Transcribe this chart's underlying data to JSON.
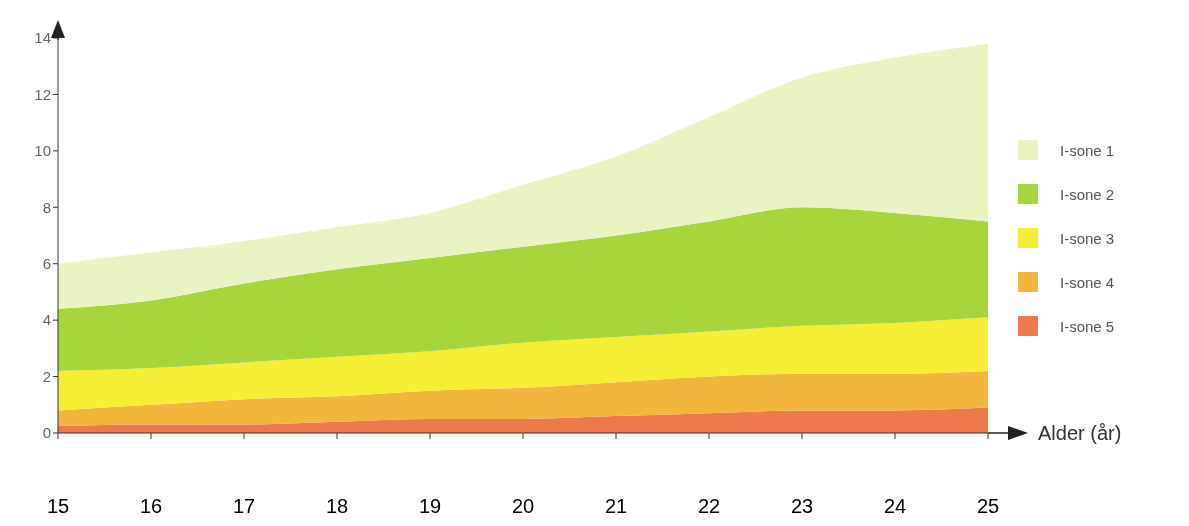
{
  "chart_data": {
    "type": "area",
    "stacked": true,
    "xlabel": "Alder (år)",
    "x": [
      15,
      16,
      17,
      18,
      19,
      20,
      21,
      22,
      23,
      24,
      25
    ],
    "xlim": [
      15,
      25
    ],
    "xticks": [
      15,
      16,
      17,
      18,
      19,
      20,
      21,
      22,
      23,
      24,
      25
    ],
    "ylim": [
      0,
      14
    ],
    "yticks": [
      0,
      2,
      4,
      6,
      8,
      10,
      12,
      14
    ],
    "grid": false,
    "legend": "right",
    "series": [
      {
        "name": "I-sone 5",
        "color": "#ee7a4c",
        "values": [
          0.25,
          0.3,
          0.3,
          0.4,
          0.5,
          0.5,
          0.6,
          0.7,
          0.8,
          0.8,
          0.9
        ]
      },
      {
        "name": "I-sone 4",
        "color": "#f2b53e",
        "values": [
          0.55,
          0.7,
          0.9,
          0.9,
          1.0,
          1.1,
          1.2,
          1.3,
          1.3,
          1.3,
          1.3
        ]
      },
      {
        "name": "I-sone 3",
        "color": "#f6ee34",
        "values": [
          1.4,
          1.3,
          1.3,
          1.4,
          1.4,
          1.6,
          1.6,
          1.6,
          1.7,
          1.8,
          1.9
        ]
      },
      {
        "name": "I-sone 2",
        "color": "#a6d63c",
        "values": [
          2.2,
          2.4,
          2.8,
          3.1,
          3.3,
          3.4,
          3.6,
          3.9,
          4.2,
          3.9,
          3.4
        ]
      },
      {
        "name": "I-sone 1",
        "color": "#eaf4c2",
        "values": [
          1.6,
          1.7,
          1.5,
          1.5,
          1.6,
          2.2,
          2.8,
          3.7,
          4.6,
          5.5,
          6.3
        ]
      }
    ]
  }
}
